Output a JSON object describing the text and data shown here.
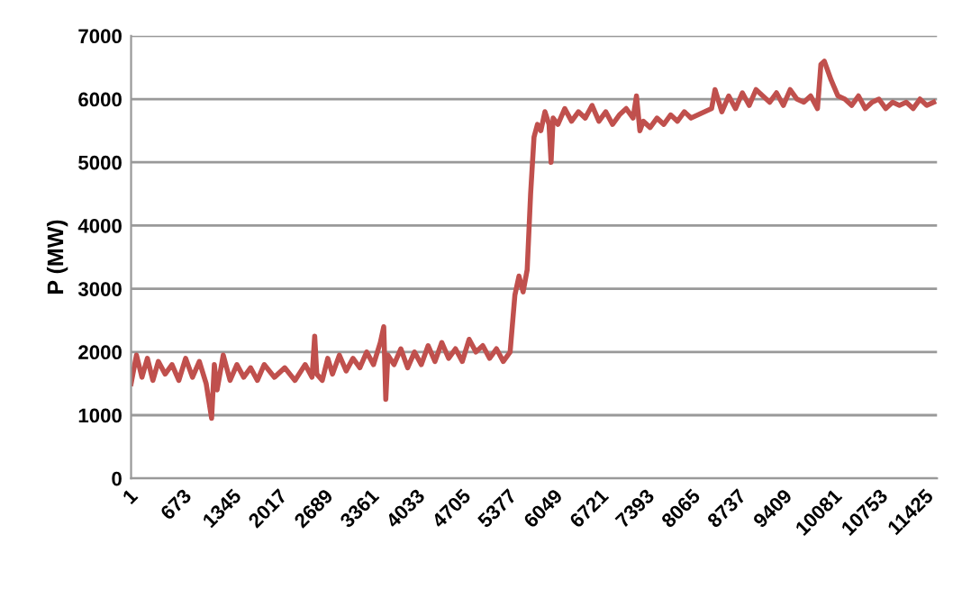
{
  "chart_data": {
    "type": "line",
    "ylabel": "P (MW)",
    "xlim": [
      1,
      11800
    ],
    "ylim": [
      0,
      7000
    ],
    "xticks": [
      1,
      673,
      1345,
      2017,
      2689,
      3361,
      4033,
      4705,
      5377,
      6049,
      6721,
      7393,
      8065,
      8737,
      9409,
      10081,
      10753,
      11425
    ],
    "yticks": [
      0,
      1000,
      2000,
      3000,
      4000,
      5000,
      6000,
      7000
    ],
    "grid": "y",
    "legend": false,
    "marker": "none",
    "line_style": "solid",
    "series": [
      {
        "color": "#c0504d",
        "x": [
          1,
          80,
          160,
          240,
          320,
          400,
          500,
          600,
          700,
          800,
          900,
          1000,
          1100,
          1180,
          1220,
          1260,
          1350,
          1450,
          1550,
          1650,
          1750,
          1850,
          1950,
          2100,
          2250,
          2400,
          2550,
          2650,
          2689,
          2720,
          2800,
          2880,
          2950,
          3050,
          3150,
          3250,
          3350,
          3450,
          3550,
          3650,
          3700,
          3730,
          3760,
          3850,
          3950,
          4050,
          4150,
          4250,
          4350,
          4450,
          4550,
          4650,
          4750,
          4850,
          4950,
          5050,
          5150,
          5250,
          5350,
          5450,
          5550,
          5620,
          5680,
          5740,
          5800,
          5850,
          5900,
          5950,
          6000,
          6060,
          6120,
          6150,
          6180,
          6250,
          6350,
          6450,
          6550,
          6650,
          6750,
          6850,
          6950,
          7050,
          7150,
          7250,
          7350,
          7400,
          7450,
          7500,
          7600,
          7700,
          7800,
          7900,
          8000,
          8100,
          8200,
          8300,
          8400,
          8500,
          8550,
          8650,
          8750,
          8850,
          8950,
          9050,
          9150,
          9250,
          9350,
          9450,
          9550,
          9650,
          9750,
          9850,
          9950,
          10050,
          10100,
          10150,
          10250,
          10350,
          10450,
          10550,
          10650,
          10750,
          10850,
          10950,
          11050,
          11150,
          11250,
          11350,
          11450,
          11550,
          11650,
          11750
        ],
        "values": [
          1500,
          1950,
          1600,
          1900,
          1550,
          1850,
          1650,
          1800,
          1550,
          1900,
          1600,
          1850,
          1500,
          950,
          1800,
          1400,
          1950,
          1550,
          1800,
          1600,
          1750,
          1550,
          1800,
          1600,
          1750,
          1550,
          1800,
          1600,
          2250,
          1650,
          1550,
          1900,
          1650,
          1950,
          1700,
          1900,
          1750,
          2000,
          1800,
          2150,
          2400,
          1250,
          1950,
          1800,
          2050,
          1750,
          2000,
          1800,
          2100,
          1850,
          2150,
          1900,
          2050,
          1850,
          2200,
          2000,
          2100,
          1900,
          2050,
          1850,
          2000,
          2900,
          3200,
          2950,
          3300,
          4500,
          5400,
          5600,
          5500,
          5800,
          5600,
          5000,
          5700,
          5600,
          5850,
          5650,
          5800,
          5700,
          5900,
          5650,
          5800,
          5600,
          5750,
          5850,
          5700,
          6050,
          5500,
          5650,
          5550,
          5700,
          5600,
          5750,
          5650,
          5800,
          5700,
          5750,
          5800,
          5850,
          6150,
          5800,
          6050,
          5850,
          6100,
          5900,
          6150,
          6050,
          5950,
          6100,
          5900,
          6150,
          6000,
          5950,
          6050,
          5850,
          6550,
          6600,
          6300,
          6050,
          6000,
          5900,
          6050,
          5850,
          5950,
          6000,
          5850,
          5950,
          5900,
          5950,
          5850,
          6000,
          5900,
          5950
        ]
      }
    ]
  }
}
